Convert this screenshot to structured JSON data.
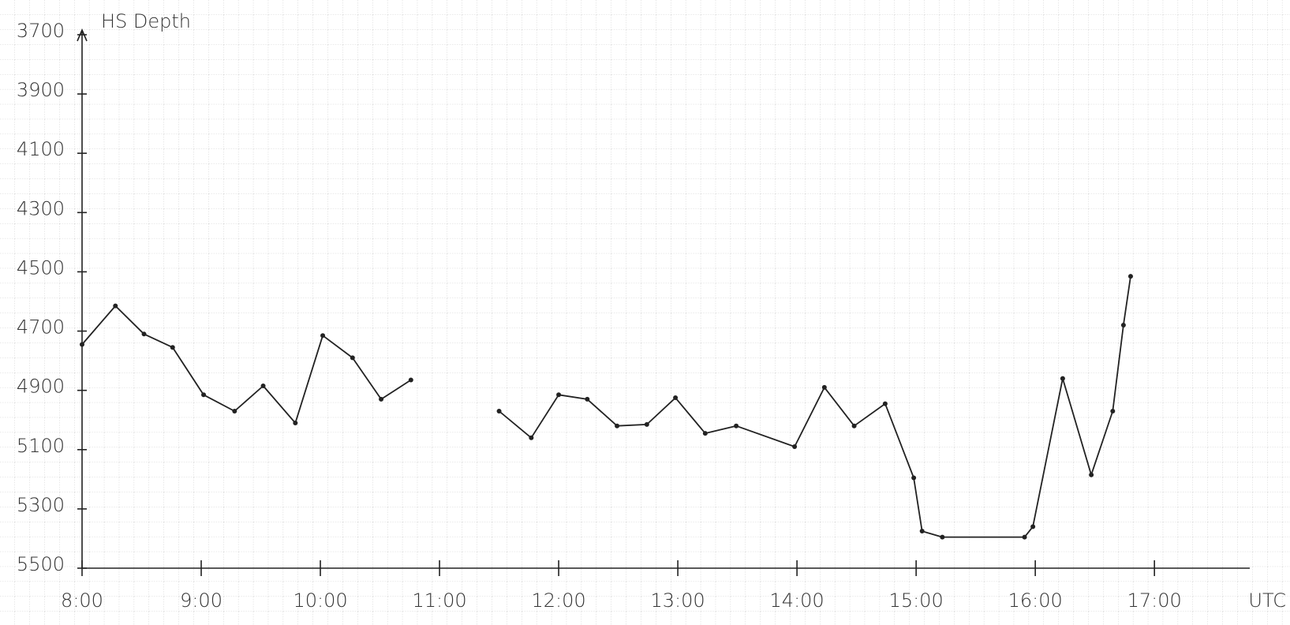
{
  "chart_data": {
    "type": "line",
    "title": "HS Depth",
    "x_label": "UTC",
    "x": [
      8.0,
      8.28,
      8.52,
      8.76,
      9.02,
      9.28,
      9.52,
      9.79,
      10.02,
      10.27,
      10.51,
      10.76,
      null,
      11.5,
      11.77,
      12.0,
      12.24,
      12.49,
      12.74,
      12.98,
      13.23,
      13.49,
      13.98,
      14.23,
      14.48,
      14.74,
      14.98,
      15.05,
      15.22,
      15.91,
      15.98,
      16.23,
      16.47,
      16.65,
      16.74,
      16.8
    ],
    "series": [
      {
        "name": "HS Depth",
        "color": "#222222",
        "values": [
          4745,
          4615,
          4710,
          4755,
          4915,
          4970,
          4885,
          5010,
          4715,
          4790,
          4930,
          4865,
          null,
          4970,
          5060,
          4915,
          4930,
          5020,
          5015,
          4925,
          5045,
          5020,
          5090,
          4890,
          5020,
          4945,
          5195,
          5375,
          5395,
          5395,
          5360,
          4860,
          5185,
          4970,
          4680,
          4515
        ]
      }
    ],
    "xlim": [
      8,
      17.8
    ],
    "xticks": [
      {
        "value": 8,
        "label": "8:00"
      },
      {
        "value": 9,
        "label": "9:00"
      },
      {
        "value": 10,
        "label": "10:00"
      },
      {
        "value": 11,
        "label": "11:00"
      },
      {
        "value": 12,
        "label": "12:00"
      },
      {
        "value": 13,
        "label": "13:00"
      },
      {
        "value": 14,
        "label": "14:00"
      },
      {
        "value": 15,
        "label": "15:00"
      },
      {
        "value": 16,
        "label": "16:00"
      },
      {
        "value": 17,
        "label": "17:00"
      }
    ],
    "ylim": [
      5500,
      3700
    ],
    "yticks": [
      3700,
      3900,
      4100,
      4300,
      4500,
      4700,
      4900,
      5100,
      5300,
      5500
    ]
  }
}
